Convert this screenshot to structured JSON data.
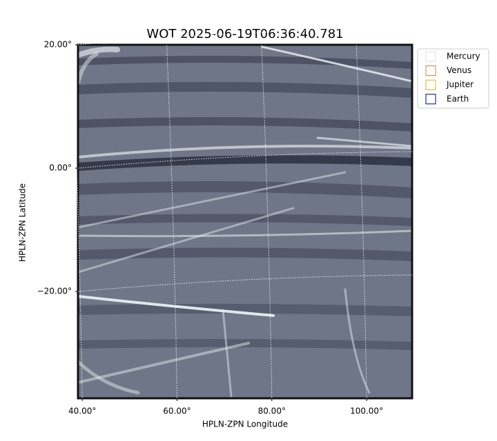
{
  "chart_data": {
    "type": "image",
    "title": "WOT 2025-06-19T06:36:40.781",
    "xlabel": "HPLN-ZPN Longitude",
    "ylabel": "HPLN-ZPN Latitude",
    "xlim": [
      39.1,
      109.6
    ],
    "ylim": [
      -37.3,
      20
    ],
    "xticks": [
      {
        "value": 40,
        "label": "40.00°"
      },
      {
        "value": 60,
        "label": "60.00°"
      },
      {
        "value": 80,
        "label": "80.00°"
      },
      {
        "value": 100,
        "label": "100.00°"
      }
    ],
    "yticks": [
      {
        "value": 20,
        "label": "20.00°"
      },
      {
        "value": 0,
        "label": "0.00°"
      },
      {
        "value": -20,
        "label": "−20.00°"
      }
    ],
    "grid": true,
    "legend_position": "outside right",
    "legend": [
      {
        "name": "Mercury",
        "color": "#dddddd"
      },
      {
        "name": "Venus",
        "color": "#e07b39"
      },
      {
        "name": "Jupiter",
        "color": "#e0b020"
      },
      {
        "name": "Earth",
        "color": "#000080"
      }
    ]
  }
}
